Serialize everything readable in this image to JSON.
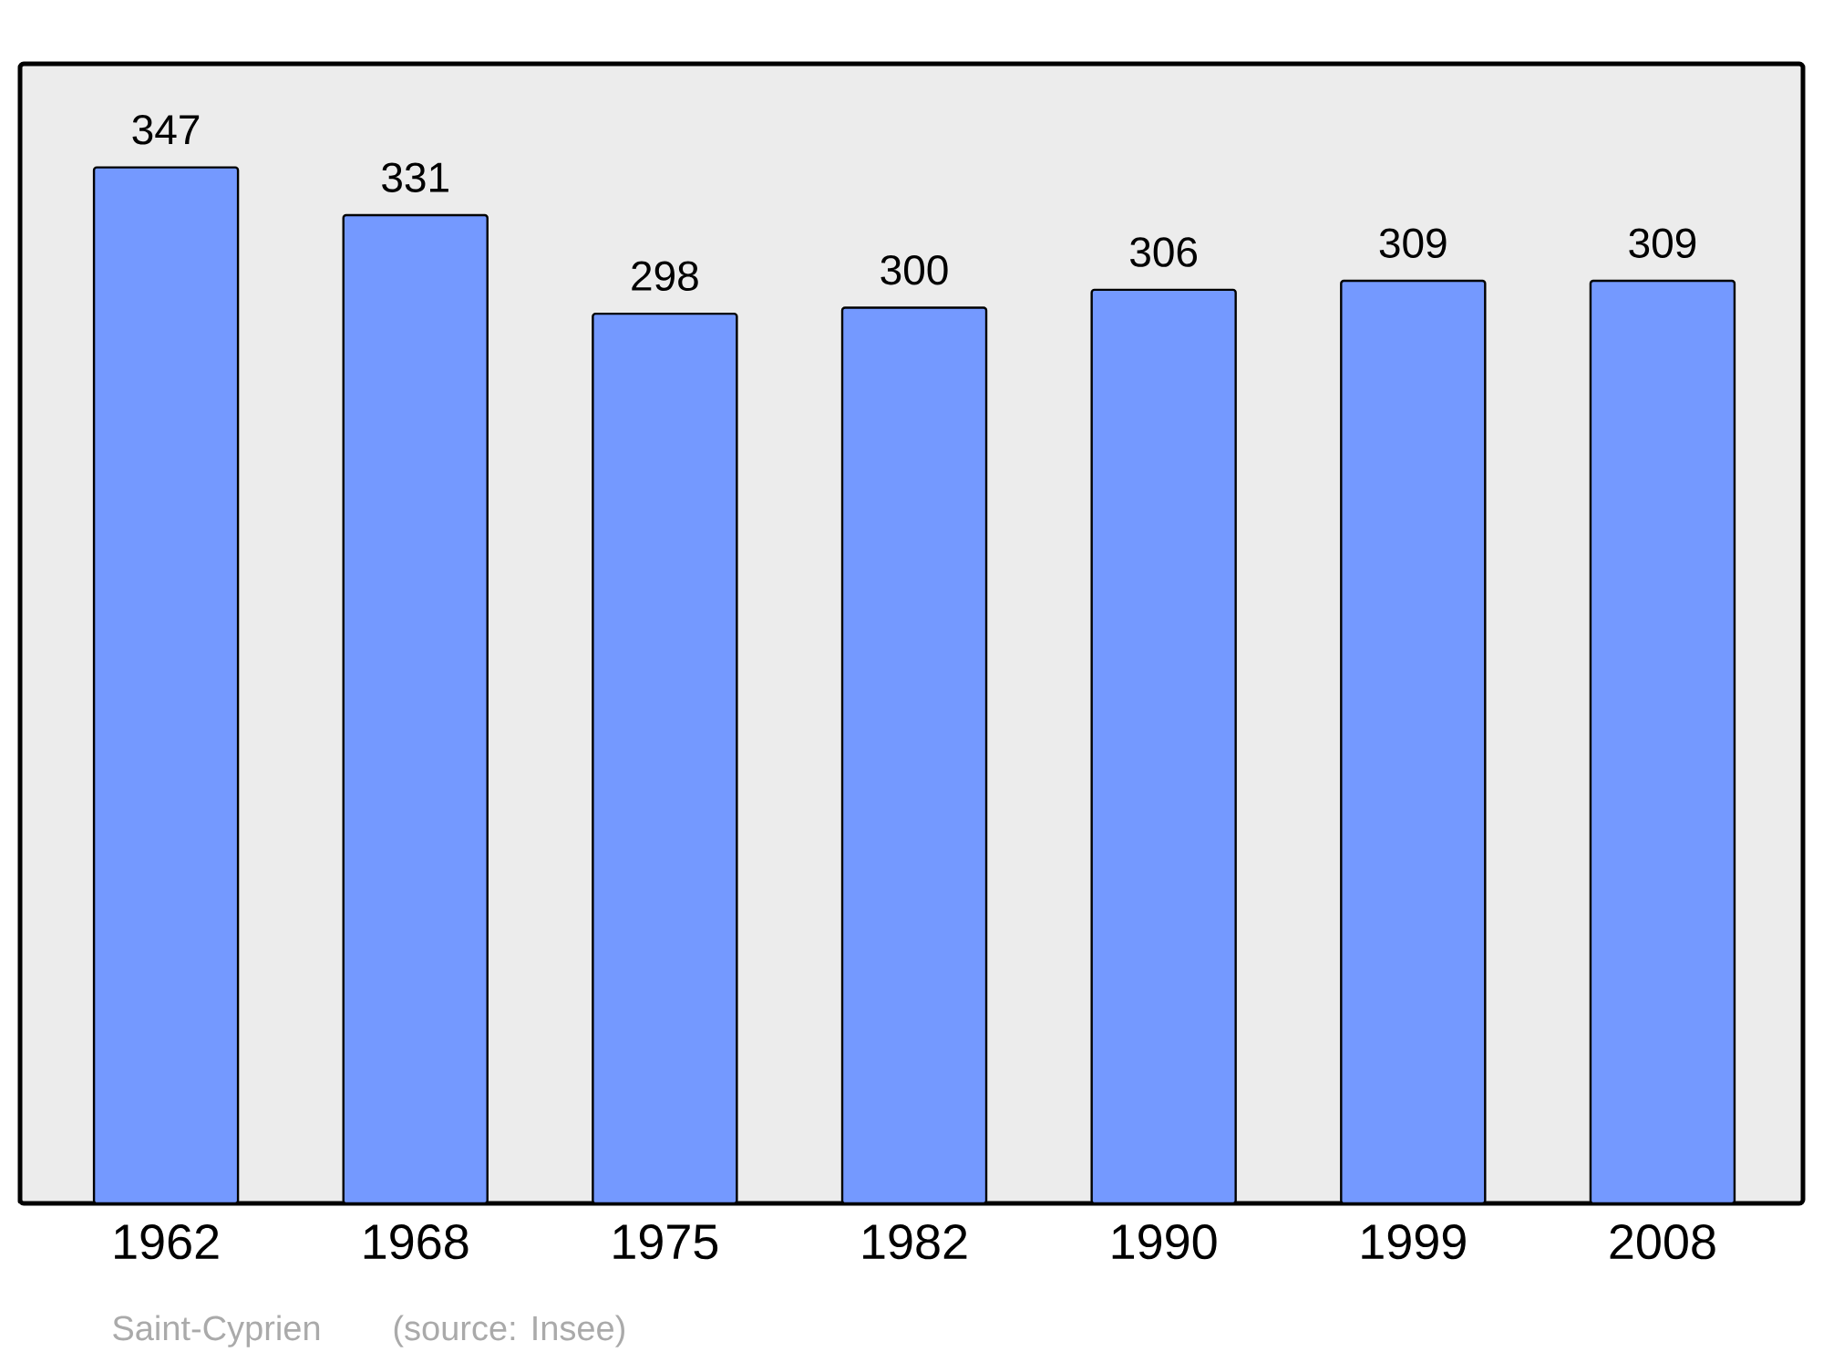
{
  "chart_data": {
    "type": "bar",
    "categories": [
      "1962",
      "1968",
      "1975",
      "1982",
      "1990",
      "1999",
      "2008"
    ],
    "values": [
      347,
      331,
      298,
      300,
      306,
      309,
      309
    ],
    "color": "#7499ff",
    "data_labels": true,
    "annotations": [
      "Saint-Cyprien",
      "(source: Insee)"
    ]
  }
}
